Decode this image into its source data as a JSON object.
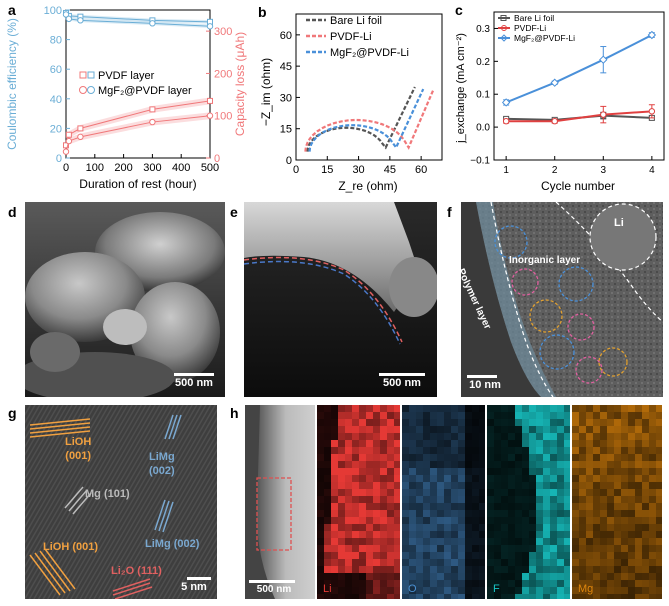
{
  "panels": {
    "a": {
      "label": "a",
      "chart_data": {
        "type": "line",
        "xlabel": "Duration of rest (hour)",
        "ylabel_left": "Coulombic efficiency (%)",
        "ylabel_right": "Capacity loss (μAh)",
        "xlim": [
          0,
          500
        ],
        "ylim_left": [
          0,
          100
        ],
        "ylim_right": [
          0,
          350
        ],
        "xticks": [
          "0",
          "100",
          "200",
          "300",
          "400",
          "500"
        ],
        "yticks_left": [
          "0",
          "20",
          "40",
          "60",
          "80",
          "100"
        ],
        "yticks_right": [
          "0",
          "100",
          "200",
          "300"
        ],
        "legend": [
          "PVDF layer",
          "MgF₂@PVDF layer"
        ],
        "legend_position": "center-right",
        "series": [
          {
            "name": "PVDF layer",
            "axis": "left",
            "marker": "square",
            "color": "#6baed6",
            "x": [
              0,
              10,
              50,
              300,
              500
            ],
            "y": [
              98,
              96,
              95.5,
              93,
              92
            ]
          },
          {
            "name": "MgF₂@PVDF layer",
            "axis": "left",
            "marker": "circle",
            "color": "#6baed6",
            "x": [
              0,
              10,
              50,
              300,
              500
            ],
            "y": [
              97,
              94,
              93,
              91,
              89
            ]
          },
          {
            "name": "PVDF layer",
            "axis": "right",
            "marker": "square",
            "color": "#f0787a",
            "x": [
              0,
              10,
              50,
              300,
              500
            ],
            "y": [
              30,
              55,
              70,
              115,
              135
            ]
          },
          {
            "name": "MgF₂@PVDF layer",
            "axis": "right",
            "marker": "circle",
            "color": "#f0787a",
            "x": [
              0,
              10,
              50,
              300,
              500
            ],
            "y": [
              15,
              40,
              50,
              85,
              100
            ]
          }
        ]
      }
    },
    "b": {
      "label": "b",
      "chart_data": {
        "type": "line",
        "xlabel": "Z_re (ohm)",
        "ylabel": "−Z_im (ohm)",
        "xlim": [
          0,
          70
        ],
        "ylim": [
          0,
          70
        ],
        "xticks": [
          "0",
          "15",
          "30",
          "45",
          "60"
        ],
        "yticks": [
          "0",
          "15",
          "30",
          "45",
          "60"
        ],
        "legend": [
          "Bare Li foil",
          "PVDF-Li",
          "MgF₂@PVDF-Li"
        ],
        "legend_position": "top-right",
        "series": [
          {
            "name": "Bare Li foil",
            "color": "#555555",
            "r": 18.5,
            "cx": 24,
            "tail_start": 43,
            "tail_end": [
              57,
              35
            ]
          },
          {
            "name": "PVDF-Li",
            "color": "#f0787a",
            "r": 24.5,
            "cx": 29,
            "tail_start": 54,
            "tail_end": [
              66,
              34
            ]
          },
          {
            "name": "MgF₂@PVDF-Li",
            "color": "#4a90d9",
            "r": 20.5,
            "cx": 27,
            "tail_start": 48,
            "tail_end": [
              61,
              34
            ]
          }
        ]
      }
    },
    "c": {
      "label": "c",
      "chart_data": {
        "type": "line",
        "xlabel": "Cycle number",
        "ylabel": "j_exchange (mA cm⁻²)",
        "xlim": [
          0.75,
          4.25
        ],
        "ylim": [
          -0.1,
          0.35
        ],
        "xticks": [
          "1",
          "2",
          "3",
          "4"
        ],
        "yticks": [
          "−0.1",
          "0.0",
          "0.1",
          "0.2",
          "0.3"
        ],
        "legend": [
          "Bare Li foil",
          "PVDF-Li",
          "MgF₂@PVDF-Li"
        ],
        "legend_position": "top-left",
        "series": [
          {
            "name": "Bare Li foil",
            "color": "#555555",
            "x": [
              1,
              2,
              3,
              4
            ],
            "y": [
              0.025,
              0.022,
              0.035,
              0.028
            ],
            "err": [
              0.005,
              0.005,
              0.01,
              0.006
            ]
          },
          {
            "name": "PVDF-Li",
            "color": "#e04040",
            "x": [
              1,
              2,
              3,
              4
            ],
            "y": [
              0.018,
              0.018,
              0.038,
              0.048
            ],
            "err": [
              0.006,
              0.006,
              0.025,
              0.02
            ]
          },
          {
            "name": "MgF₂@PVDF-Li",
            "color": "#4a90d9",
            "x": [
              1,
              2,
              3,
              4
            ],
            "y": [
              0.075,
              0.135,
              0.205,
              0.28
            ],
            "err": [
              0.008,
              0.005,
              0.04,
              0.007
            ]
          }
        ]
      }
    },
    "d": {
      "label": "d",
      "scale": "500 nm"
    },
    "e": {
      "label": "e",
      "scale": "500 nm"
    },
    "f": {
      "label": "f",
      "scale": "10 nm",
      "annotations": [
        "Li",
        "Inorganic layer",
        "Polymer layer"
      ]
    },
    "g": {
      "label": "g",
      "scale": "5 nm",
      "annotations": [
        "LiOH",
        "(001)",
        "LiMg",
        "(002)",
        "Mg (101)",
        "LiOH (001)",
        "LiMg (002)",
        "Li₂O (111)"
      ]
    },
    "h": {
      "label": "h",
      "scale": "500 nm",
      "maps": [
        "Li",
        "O",
        "F",
        "Mg"
      ]
    }
  },
  "colors": {
    "blue_series": "#6baed6",
    "red_series": "#f0787a",
    "lioh": "#f0a040",
    "limg": "#7aa8d0",
    "mg": "#bbbbbb",
    "li2o": "#e06060",
    "map_li": "#e53935",
    "map_o": "#4a8fd0",
    "map_f": "#18c5c5",
    "map_mg": "#e0860c"
  }
}
